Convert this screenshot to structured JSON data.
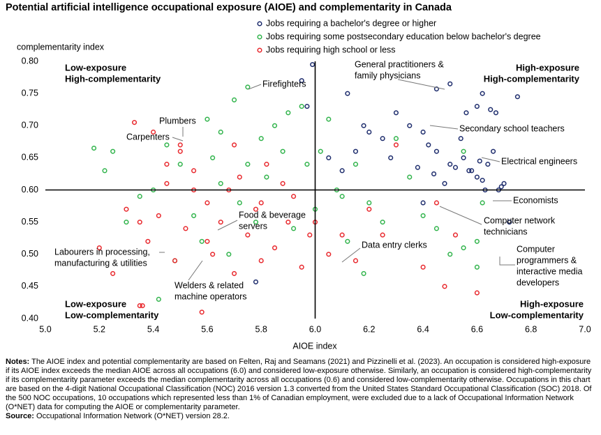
{
  "chart_data": {
    "type": "scatter",
    "title": "Potential artificial intelligence occupational exposure (AIOE) and complementarity in Canada",
    "ylabel": "complementarity index",
    "xlabel": "AIOE index",
    "xlim": [
      5,
      7
    ],
    "ylim": [
      0.4,
      0.8
    ],
    "xticks": [
      {
        "value": 5,
        "label": "5.0"
      },
      5.2,
      5.4,
      5.6,
      5.8,
      {
        "value": 6,
        "label": "6.0"
      },
      6.2,
      6.4,
      6.6,
      6.8,
      {
        "value": 7,
        "label": "7.0"
      }
    ],
    "yticks": [
      {
        "value": 0.4,
        "label": "0.40"
      },
      0.45,
      {
        "value": 0.5,
        "label": "0.50"
      },
      0.55,
      {
        "value": 0.6,
        "label": "0.60"
      },
      0.65,
      {
        "value": 0.7,
        "label": "0.70"
      },
      0.75,
      {
        "value": 0.8,
        "label": "0.80"
      }
    ],
    "xref": 6,
    "yref": 0.6,
    "series": [
      {
        "name": "Jobs requiring a bachelor's degree or higher",
        "color": "#1b2a6b",
        "x": [
          6.5,
          6.45,
          6.56,
          6.62,
          6.6,
          6.65,
          6.67,
          6.75,
          6.3,
          6.35,
          6.4,
          6.42,
          6.45,
          6.5,
          6.55,
          6.58,
          6.6,
          6.62,
          6.64,
          6.66,
          6.68,
          6.7,
          6.38,
          6.44,
          6.52,
          6.48,
          6.57,
          6.63,
          6.25,
          6.2,
          6.15,
          6.1,
          6.05,
          6.18,
          6.28,
          5.99,
          5.97,
          5.95,
          6.12,
          6.61,
          6.69,
          6.72,
          6.4,
          6.54,
          5.78
        ],
        "values": [
          0.765,
          0.757,
          0.72,
          0.75,
          0.73,
          0.725,
          0.72,
          0.745,
          0.72,
          0.7,
          0.69,
          0.67,
          0.66,
          0.64,
          0.65,
          0.63,
          0.62,
          0.615,
          0.64,
          0.66,
          0.6,
          0.61,
          0.635,
          0.625,
          0.635,
          0.61,
          0.63,
          0.6,
          0.68,
          0.69,
          0.66,
          0.63,
          0.65,
          0.7,
          0.65,
          0.795,
          0.73,
          0.77,
          0.75,
          0.645,
          0.605,
          0.55,
          0.58,
          0.68,
          0.457
        ]
      },
      {
        "name": "Jobs requiring some postsecondary education below bachelor's degree",
        "color": "#2fb34a",
        "x": [
          5.18,
          5.22,
          5.25,
          5.3,
          5.35,
          5.4,
          5.45,
          5.5,
          5.55,
          5.6,
          5.62,
          5.65,
          5.7,
          5.72,
          5.75,
          5.8,
          5.82,
          5.85,
          5.88,
          5.9,
          5.92,
          5.95,
          5.97,
          6.0,
          6.02,
          6.05,
          6.08,
          6.1,
          6.12,
          6.15,
          6.2,
          6.25,
          6.3,
          6.35,
          6.4,
          6.45,
          6.5,
          6.55,
          6.6,
          6.62,
          5.48,
          5.58,
          5.68,
          5.78,
          5.65,
          5.75,
          6.18,
          6.55,
          6.6,
          5.42
        ],
        "values": [
          0.665,
          0.63,
          0.66,
          0.55,
          0.59,
          0.6,
          0.67,
          0.64,
          0.56,
          0.71,
          0.65,
          0.69,
          0.74,
          0.58,
          0.76,
          0.68,
          0.62,
          0.7,
          0.66,
          0.72,
          0.54,
          0.73,
          0.64,
          0.57,
          0.66,
          0.71,
          0.6,
          0.59,
          0.52,
          0.64,
          0.58,
          0.55,
          0.68,
          0.62,
          0.56,
          0.54,
          0.5,
          0.66,
          0.52,
          0.58,
          0.49,
          0.52,
          0.5,
          0.55,
          0.61,
          0.64,
          0.47,
          0.51,
          0.48,
          0.43
        ]
      },
      {
        "name": "Jobs requiring high school or less",
        "color": "#e8262b",
        "x": [
          5.2,
          5.25,
          5.3,
          5.33,
          5.35,
          5.38,
          5.4,
          5.42,
          5.45,
          5.48,
          5.5,
          5.52,
          5.55,
          5.58,
          5.6,
          5.62,
          5.65,
          5.68,
          5.7,
          5.72,
          5.75,
          5.78,
          5.8,
          5.82,
          5.85,
          5.88,
          5.9,
          5.92,
          5.95,
          5.98,
          6.0,
          6.05,
          6.1,
          6.15,
          6.2,
          6.25,
          6.3,
          6.4,
          6.45,
          6.48,
          6.6,
          5.5,
          5.6,
          5.55,
          5.45,
          5.35,
          5.7,
          5.8,
          5.36,
          6.52
        ],
        "values": [
          0.51,
          0.47,
          0.57,
          0.705,
          0.42,
          0.52,
          0.69,
          0.56,
          0.61,
          0.49,
          0.67,
          0.54,
          0.63,
          0.41,
          0.58,
          0.5,
          0.55,
          0.6,
          0.47,
          0.62,
          0.53,
          0.57,
          0.49,
          0.64,
          0.51,
          0.61,
          0.55,
          0.59,
          0.48,
          0.53,
          0.55,
          0.5,
          0.53,
          0.49,
          0.57,
          0.53,
          0.67,
          0.48,
          0.58,
          0.45,
          0.44,
          0.66,
          0.52,
          0.6,
          0.64,
          0.55,
          0.67,
          0.58,
          0.42,
          0.53
        ]
      }
    ],
    "quadrant_labels": [
      [
        "Low-exposure",
        "High-complementarity"
      ],
      [
        "High-exposure",
        "High-complementarity"
      ],
      [
        "Low-exposure",
        "Low-complementarity"
      ],
      [
        "High-exposure",
        "Low-complementarity"
      ]
    ],
    "annotations": [
      [
        "Firefighters"
      ],
      [
        "Plumbers"
      ],
      [
        "Carpenters"
      ],
      [
        "General practitioners &",
        "family physicians"
      ],
      [
        "Secondary school teachers"
      ],
      [
        "Electrical engineers"
      ],
      [
        "Economists"
      ],
      [
        "Computer network",
        "technicians"
      ],
      [
        "Food & beverage",
        "servers"
      ],
      [
        "Labourers in processing,",
        "manufacturing & utilities"
      ],
      [
        "Welders & related",
        "machine operators"
      ],
      [
        "Data entry clerks"
      ],
      [
        "Computer",
        "programmers &",
        "interactive media",
        "developers"
      ]
    ],
    "notes_label": "Notes:",
    "notes": "The AIOE index and potential complementarity are based on Felten, Raj and Seamans (2021) and Pizzinelli et al. (2023). An occupation is considered high-exposure if its AIOE index exceeds the median AIOE across all occupations (6.0) and considered low-exposure otherwise. Similarly, an occupation is considered high-complementarity if its complementarity parameter exceeds the median complementarity across all occupations (0.6) and considered low-complementarity otherwise. Occupations in this chart are based on the 4-digit National Occupational Classification (NOC) 2016 version 1.3 converted from the United States Standard Occupational Classification (SOC) 2018. Of the 500 NOC occupations, 10 occupations which represented less than 1% of Canadian employment, were excluded due to a lack of Occupational Information Network (O*NET) data for computing the AIOE or complementarity parameter.",
    "source_label": "Source:",
    "source": "Occupational Information Network (O*NET) version 28.2."
  }
}
